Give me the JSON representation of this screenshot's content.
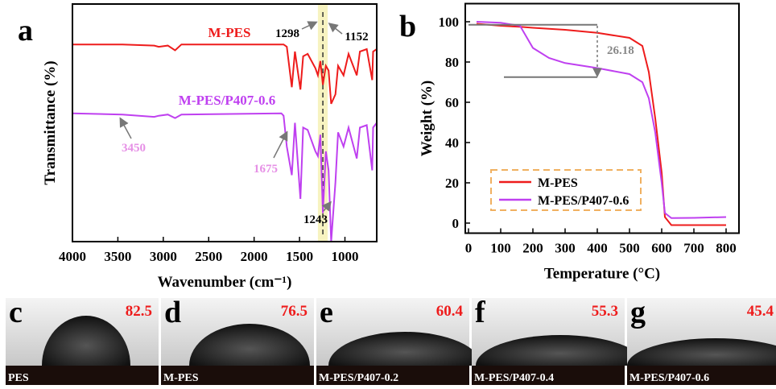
{
  "chart_data": [
    {
      "type": "line",
      "letter": "a",
      "x_label": "Wavenumber (cm⁻¹)",
      "y_label": "Transmittance (%)",
      "xlim": [
        4000,
        650
      ],
      "xticks": [
        4000,
        3500,
        3000,
        2500,
        2000,
        1500,
        1000
      ],
      "ylim": [
        0,
        100
      ],
      "x": [
        4000,
        3450,
        3100,
        3050,
        2950,
        2870,
        2800,
        1700,
        1675,
        1640,
        1585,
        1550,
        1490,
        1460,
        1410,
        1325,
        1298,
        1270,
        1243,
        1210,
        1180,
        1152,
        1105,
        1075,
        1015,
        960,
        870,
        835,
        760,
        700,
        690,
        650
      ],
      "series": [
        {
          "name": "M-PES",
          "color": "#ee1c1c",
          "values": [
            83,
            83,
            82.5,
            82,
            82.5,
            80.5,
            83,
            83,
            83,
            82,
            65,
            80,
            64,
            78,
            79,
            73,
            70,
            76,
            66,
            74,
            72,
            58,
            62,
            74,
            70,
            79,
            70,
            80,
            81,
            68,
            80,
            81
          ]
        },
        {
          "name": "M-PES/P407-0.6",
          "color": "#bf40f0",
          "values": [
            54,
            53.5,
            52.5,
            53,
            53.5,
            52,
            53.5,
            54,
            53,
            40,
            28,
            50,
            18,
            48,
            47,
            38,
            36,
            45,
            12,
            38,
            30,
            0,
            25,
            46,
            40,
            48,
            35,
            48,
            49,
            30,
            48,
            50
          ]
        }
      ],
      "annotations": [
        "1298",
        "1152",
        "1243",
        "3450",
        "1675"
      ]
    },
    {
      "type": "line",
      "letter": "b",
      "x_label": "Temperature (°C)",
      "y_label": "Weight (%)",
      "xlim": [
        -10,
        840
      ],
      "xticks": [
        0,
        100,
        200,
        300,
        400,
        500,
        600,
        700,
        800
      ],
      "ylim": [
        -5,
        109
      ],
      "yticks": [
        0,
        20,
        40,
        60,
        80,
        100
      ],
      "x": [
        25,
        100,
        160,
        200,
        250,
        300,
        400,
        500,
        540,
        560,
        580,
        600,
        610,
        630,
        700,
        800
      ],
      "series": [
        {
          "name": "M-PES",
          "color": "#ee1c1c",
          "values": [
            99,
            98,
            97.5,
            97,
            96.5,
            96,
            94.5,
            92,
            88,
            75,
            52,
            25,
            3,
            -1,
            -1,
            -1
          ]
        },
        {
          "name": "M-PES/P407-0.6",
          "color": "#bf40f0",
          "values": [
            100,
            99.5,
            98,
            87,
            82,
            79.5,
            77,
            74,
            70,
            62,
            45,
            20,
            5,
            2.5,
            2.6,
            3
          ]
        }
      ],
      "annotations": [
        "26.18"
      ]
    }
  ],
  "panels": [
    {
      "letter": "c",
      "label": "PES",
      "angle": "82.5"
    },
    {
      "letter": "d",
      "label": "M-PES",
      "angle": "76.5"
    },
    {
      "letter": "e",
      "label": "M-PES/P407-0.2",
      "angle": "60.4"
    },
    {
      "letter": "f",
      "label": "M-PES/P407-0.4",
      "angle": "55.3"
    },
    {
      "letter": "g",
      "label": "M-PES/P407-0.6",
      "angle": "45.4"
    }
  ]
}
